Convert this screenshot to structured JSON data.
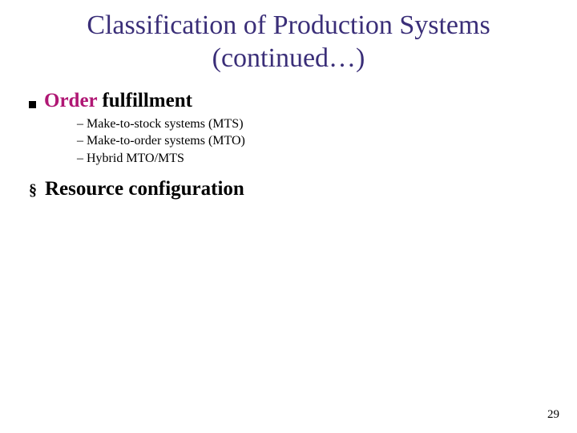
{
  "title_line1": "Classification of Production Systems",
  "title_line2": "(continued…)",
  "bullet1": {
    "accent_word": "Order",
    "rest": " fulfillment"
  },
  "sub_items": [
    "Make-to-stock systems (MTS)",
    "Make-to-order systems (MTO)",
    "Hybrid MTO/MTS"
  ],
  "bullet2": "Resource configuration",
  "page_number": "29",
  "colors": {
    "title": "#3a2e78",
    "accent": "#b01774",
    "text": "#000000",
    "background": "#ffffff"
  },
  "fonts": {
    "family": "Times New Roman",
    "title_size_pt": 34,
    "bullet_size_pt": 25,
    "sub_size_pt": 16,
    "pagenum_size_pt": 15
  }
}
